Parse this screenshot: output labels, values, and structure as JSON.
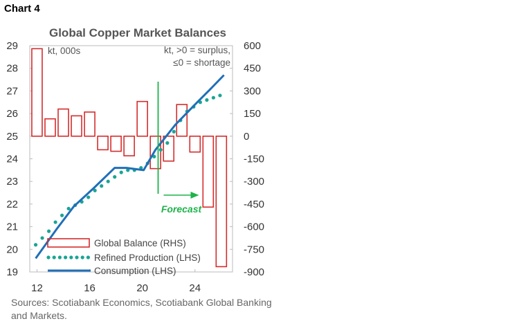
{
  "header": {
    "chart_number": "Chart 4"
  },
  "source": "Sources: Scotiabank Economics, Scotiabank Global Banking and Markets.",
  "colors": {
    "balance": "#d42c2c",
    "refined": "#1aa593",
    "consumption": "#1f6fb8",
    "forecast": "#1db34a"
  },
  "chart_data": {
    "type": "bar+line",
    "title": "Global Copper Market Balances",
    "left_axis": {
      "note": "kt, 000s",
      "ylim": [
        19,
        29
      ],
      "ticks": [
        "29",
        "28",
        "27",
        "26",
        "25",
        "24",
        "23",
        "22",
        "21",
        "20",
        "19"
      ]
    },
    "right_axis": {
      "note_line1": "kt, >0 = surplus,",
      "note_line2": "≤0 = shortage",
      "ylim": [
        -900,
        600
      ],
      "ticks": [
        "600",
        "450",
        "300",
        "150",
        "0",
        "-150",
        "-300",
        "-450",
        "-600",
        "-750",
        "-900"
      ]
    },
    "x_ticks": [
      "12",
      "16",
      "20",
      "24"
    ],
    "x_tick_values": [
      2012,
      2016,
      2020,
      2024
    ],
    "forecast_label": "Forecast",
    "forecast_start": 2021.2,
    "series": [
      {
        "name": "Global Balance (RHS)",
        "type": "bar",
        "axis": "right",
        "x": [
          2012,
          2013,
          2014,
          2015,
          2016,
          2017,
          2018,
          2019,
          2020,
          2021,
          2022,
          2023,
          2024,
          2025,
          2026
        ],
        "values": [
          580,
          115,
          180,
          135,
          160,
          -90,
          -100,
          -130,
          230,
          -215,
          -165,
          210,
          -105,
          -470,
          -865
        ]
      },
      {
        "name": "Refined Production (LHS)",
        "type": "dotted-line",
        "axis": "left",
        "x": [
          2011.9,
          2012.4,
          2012.9,
          2013.4,
          2013.9,
          2014.4,
          2014.9,
          2015.4,
          2015.9,
          2016.4,
          2016.9,
          2017.4,
          2017.9,
          2018.4,
          2018.9,
          2019.4,
          2019.9,
          2020.4,
          2020.9,
          2021.4,
          2021.9,
          2022.4,
          2022.9,
          2023.4,
          2023.9,
          2024.4,
          2024.9,
          2025.4,
          2025.9
        ],
        "values": [
          20.2,
          20.5,
          20.8,
          21.2,
          21.5,
          21.8,
          21.95,
          22.1,
          22.3,
          22.6,
          22.8,
          23.0,
          23.2,
          23.4,
          23.5,
          23.5,
          23.6,
          23.8,
          24.1,
          24.4,
          24.7,
          25.2,
          25.7,
          26.1,
          26.3,
          26.5,
          26.6,
          26.7,
          26.8
        ]
      },
      {
        "name": "Consumption (LHS)",
        "type": "line",
        "axis": "left",
        "x": [
          2011.9,
          2013.5,
          2014.8,
          2016.3,
          2017.9,
          2018.8,
          2020.1,
          2021.0,
          2022.5,
          2024.0,
          2025.2,
          2026.2
        ],
        "values": [
          19.6,
          20.9,
          21.9,
          22.7,
          23.6,
          23.6,
          23.5,
          24.4,
          25.5,
          26.4,
          27.1,
          27.7
        ]
      }
    ]
  }
}
